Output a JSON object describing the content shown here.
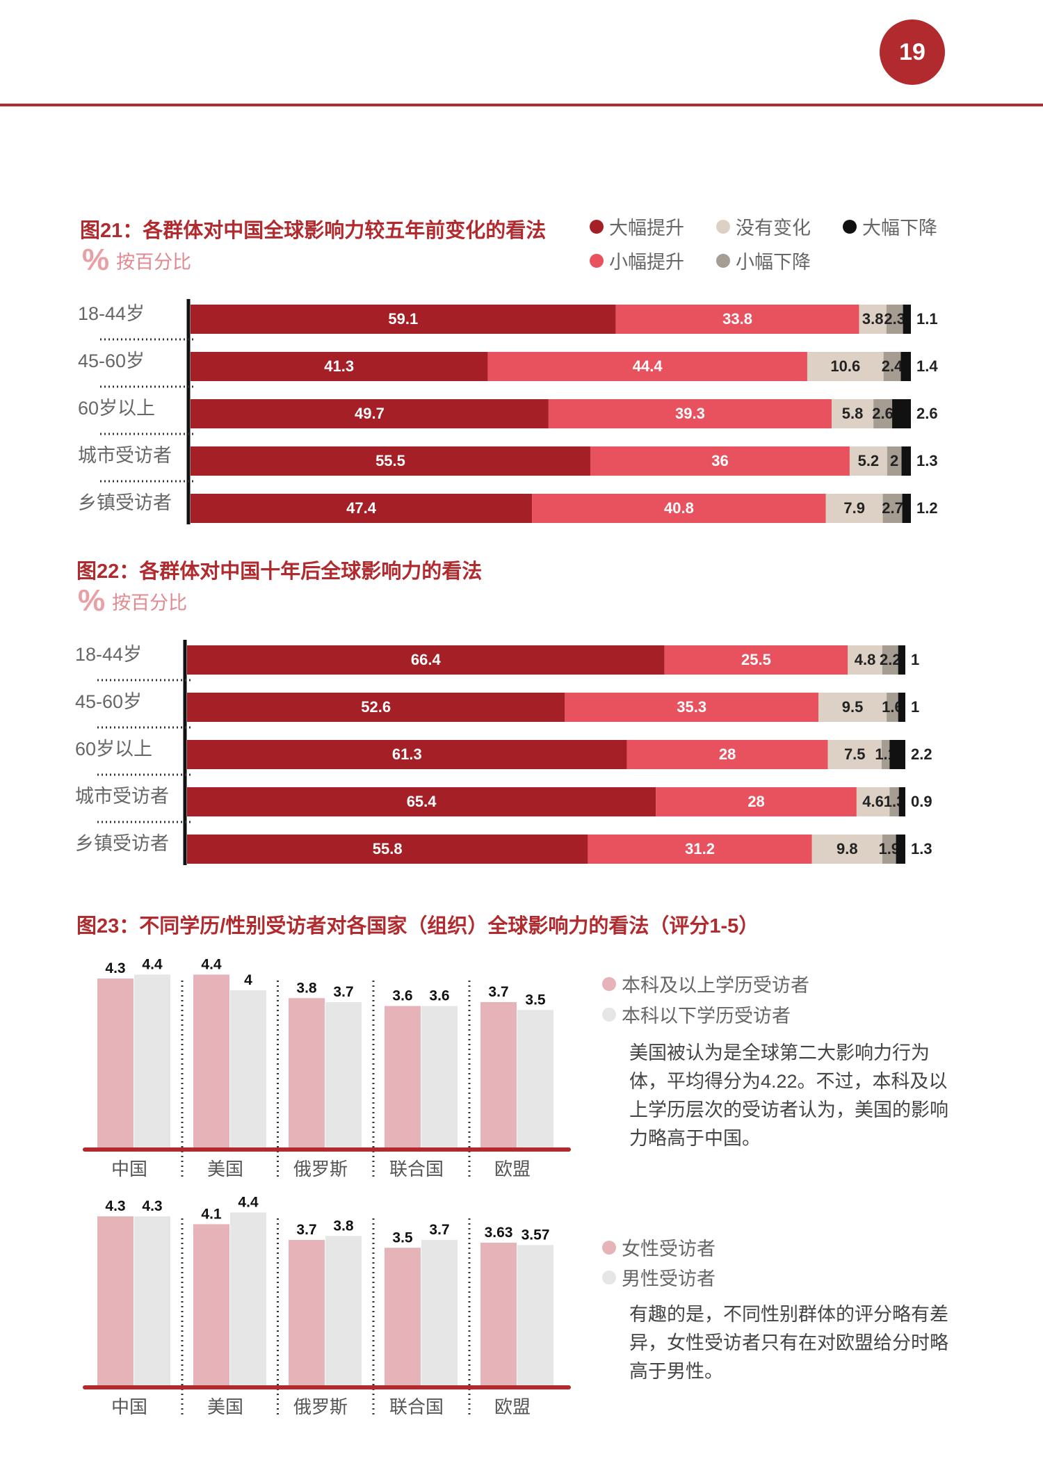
{
  "page": {
    "number": "19"
  },
  "colors": {
    "big_up": "#a51f27",
    "small_up": "#e8525f",
    "no_change": "#ddd0c4",
    "small_down": "#a59c92",
    "big_down": "#111111",
    "edu_high": "#e6b4b8",
    "edu_low": "#e6e6e6",
    "accent": "#b02a2e"
  },
  "fig21": {
    "title": "图21：各群体对中国全球影响力较五年前变化的看法",
    "unit": "按百分比"
  },
  "fig22": {
    "title": "图22：各群体对中国十年后全球影响力的看法",
    "unit": "按百分比"
  },
  "fig23": {
    "title": "图23：不同学历/性别受访者对各国家（组织）全球影响力的看法（评分1-5）"
  },
  "legend21": {
    "big_up": "大幅提升",
    "no_change": "没有变化",
    "big_down": "大幅下降",
    "small_up": "小幅提升",
    "small_down": "小幅下降"
  },
  "legend23a": {
    "high": "本科及以上学历受访者",
    "low": "本科以下学历受访者"
  },
  "legend23b": {
    "female": "女性受访者",
    "male": "男性受访者"
  },
  "notes": {
    "edu": "美国被认为是全球第二大影响力行为体，平均得分为4.22。不过，本科及以上学历层次的受访者认为，美国的影响力略高于中国。",
    "gender": "有趣的是，不同性别群体的评分略有差异，女性受访者只有在对欧盟给分时略高于男性。"
  },
  "chart_data": [
    {
      "id": "fig21",
      "type": "bar",
      "orientation": "horizontal-stacked",
      "categories": [
        "18-44岁",
        "45-60岁",
        "60岁以上",
        "城市受访者",
        "乡镇受访者"
      ],
      "series": [
        {
          "name": "大幅提升",
          "values": [
            59.1,
            41.3,
            49.7,
            55.5,
            47.4
          ]
        },
        {
          "name": "小幅提升",
          "values": [
            33.8,
            44.4,
            39.3,
            36,
            40.8
          ]
        },
        {
          "name": "没有变化",
          "values": [
            3.8,
            10.6,
            5.8,
            5.2,
            7.9
          ]
        },
        {
          "name": "小幅下降",
          "values": [
            2.3,
            2.4,
            2.6,
            2,
            2.7
          ]
        },
        {
          "name": "大幅下降",
          "values": [
            1.1,
            1.4,
            2.6,
            1.3,
            1.2
          ]
        }
      ]
    },
    {
      "id": "fig22",
      "type": "bar",
      "orientation": "horizontal-stacked",
      "categories": [
        "18-44岁",
        "45-60岁",
        "60岁以上",
        "城市受访者",
        "乡镇受访者"
      ],
      "series": [
        {
          "name": "大幅提升",
          "values": [
            66.4,
            52.6,
            61.3,
            65.4,
            55.8
          ]
        },
        {
          "name": "小幅提升",
          "values": [
            25.5,
            35.3,
            28,
            28,
            31.2
          ]
        },
        {
          "name": "没有变化",
          "values": [
            4.8,
            9.5,
            7.5,
            4.6,
            9.8
          ]
        },
        {
          "name": "小幅下降",
          "values": [
            2.2,
            1.6,
            1.1,
            1.3,
            1.9
          ]
        },
        {
          "name": "大幅下降",
          "values": [
            1,
            1,
            2.2,
            0.9,
            1.3
          ]
        }
      ]
    },
    {
      "id": "fig23a",
      "type": "bar",
      "categories": [
        "中国",
        "美国",
        "俄罗斯",
        "联合国",
        "欧盟"
      ],
      "series": [
        {
          "name": "本科及以上学历受访者",
          "values": [
            4.3,
            4.4,
            3.8,
            3.6,
            3.7
          ],
          "labels": [
            "4.3",
            "4.4",
            "3.8",
            "3.6",
            "3.7"
          ]
        },
        {
          "name": "本科以下学历受访者",
          "values": [
            4.4,
            4,
            3.7,
            3.6,
            3.5
          ],
          "labels": [
            "4.4",
            "4",
            "3.7",
            "3.6",
            "3.5"
          ]
        }
      ]
    },
    {
      "id": "fig23b",
      "type": "bar",
      "categories": [
        "中国",
        "美国",
        "俄罗斯",
        "联合国",
        "欧盟"
      ],
      "series": [
        {
          "name": "女性受访者",
          "values": [
            4.3,
            4.1,
            3.7,
            3.5,
            3.63
          ],
          "labels": [
            "4.3",
            "4.1",
            "3.7",
            "3.5",
            "3.63"
          ]
        },
        {
          "name": "男性受访者",
          "values": [
            4.3,
            4.4,
            3.8,
            3.7,
            3.57
          ],
          "labels": [
            "4.3",
            "4.4",
            "3.8",
            "3.7",
            "3.57"
          ]
        }
      ]
    }
  ]
}
